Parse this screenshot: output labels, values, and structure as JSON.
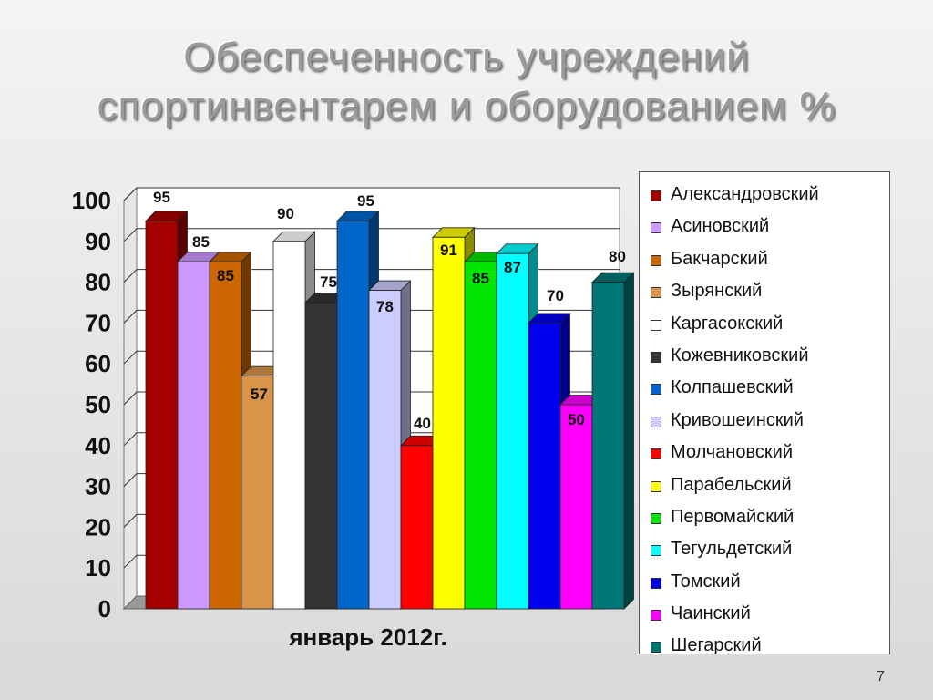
{
  "slide": {
    "title_lines": [
      "Обеспеченность учреждений",
      "спортинвентарем и оборудованием %"
    ],
    "page_number": "7"
  },
  "chart_data": {
    "type": "bar",
    "x_label": "январь 2012г.",
    "ylim": [
      0,
      100
    ],
    "yticks": [
      "0",
      "10",
      "20",
      "30",
      "40",
      "50",
      "60",
      "70",
      "80",
      "90",
      "100"
    ],
    "legend_position": "right",
    "three_d": true,
    "categories": [
      "январь 2012г."
    ],
    "series": [
      {
        "name": "Александровский",
        "value": 95,
        "color": "#a50000"
      },
      {
        "name": "Асиновский",
        "value": 85,
        "color": "#cc99ff"
      },
      {
        "name": "Бакчарский",
        "value": 85,
        "color": "#cc6600"
      },
      {
        "name": "Зырянский",
        "value": 57,
        "color": "#d9954a"
      },
      {
        "name": "Каргасокский",
        "value": 90,
        "color": "#ffffff"
      },
      {
        "name": "Кожевниковский",
        "value": 75,
        "color": "#333333"
      },
      {
        "name": "Колпашевский",
        "value": 95,
        "color": "#0066cc"
      },
      {
        "name": "Кривошеинский",
        "value": 78,
        "color": "#ccccff"
      },
      {
        "name": "Молчановский",
        "value": 40,
        "color": "#ff0000"
      },
      {
        "name": "Парабельский",
        "value": 91,
        "color": "#ffff00"
      },
      {
        "name": "Первомайский",
        "value": 85,
        "color": "#00e600"
      },
      {
        "name": "Тегульдетский",
        "value": 87,
        "color": "#00ffff"
      },
      {
        "name": "Томский",
        "value": 70,
        "color": "#0000ee"
      },
      {
        "name": "Чаинский",
        "value": 50,
        "color": "#ff00ff"
      },
      {
        "name": "Шегарский",
        "value": 80,
        "color": "#007777"
      }
    ],
    "data_labels": [
      "95",
      "85",
      "85",
      "57",
      "90",
      "75",
      "95",
      "78",
      "40",
      "91",
      "85",
      "87",
      "70",
      "50",
      "80"
    ]
  }
}
